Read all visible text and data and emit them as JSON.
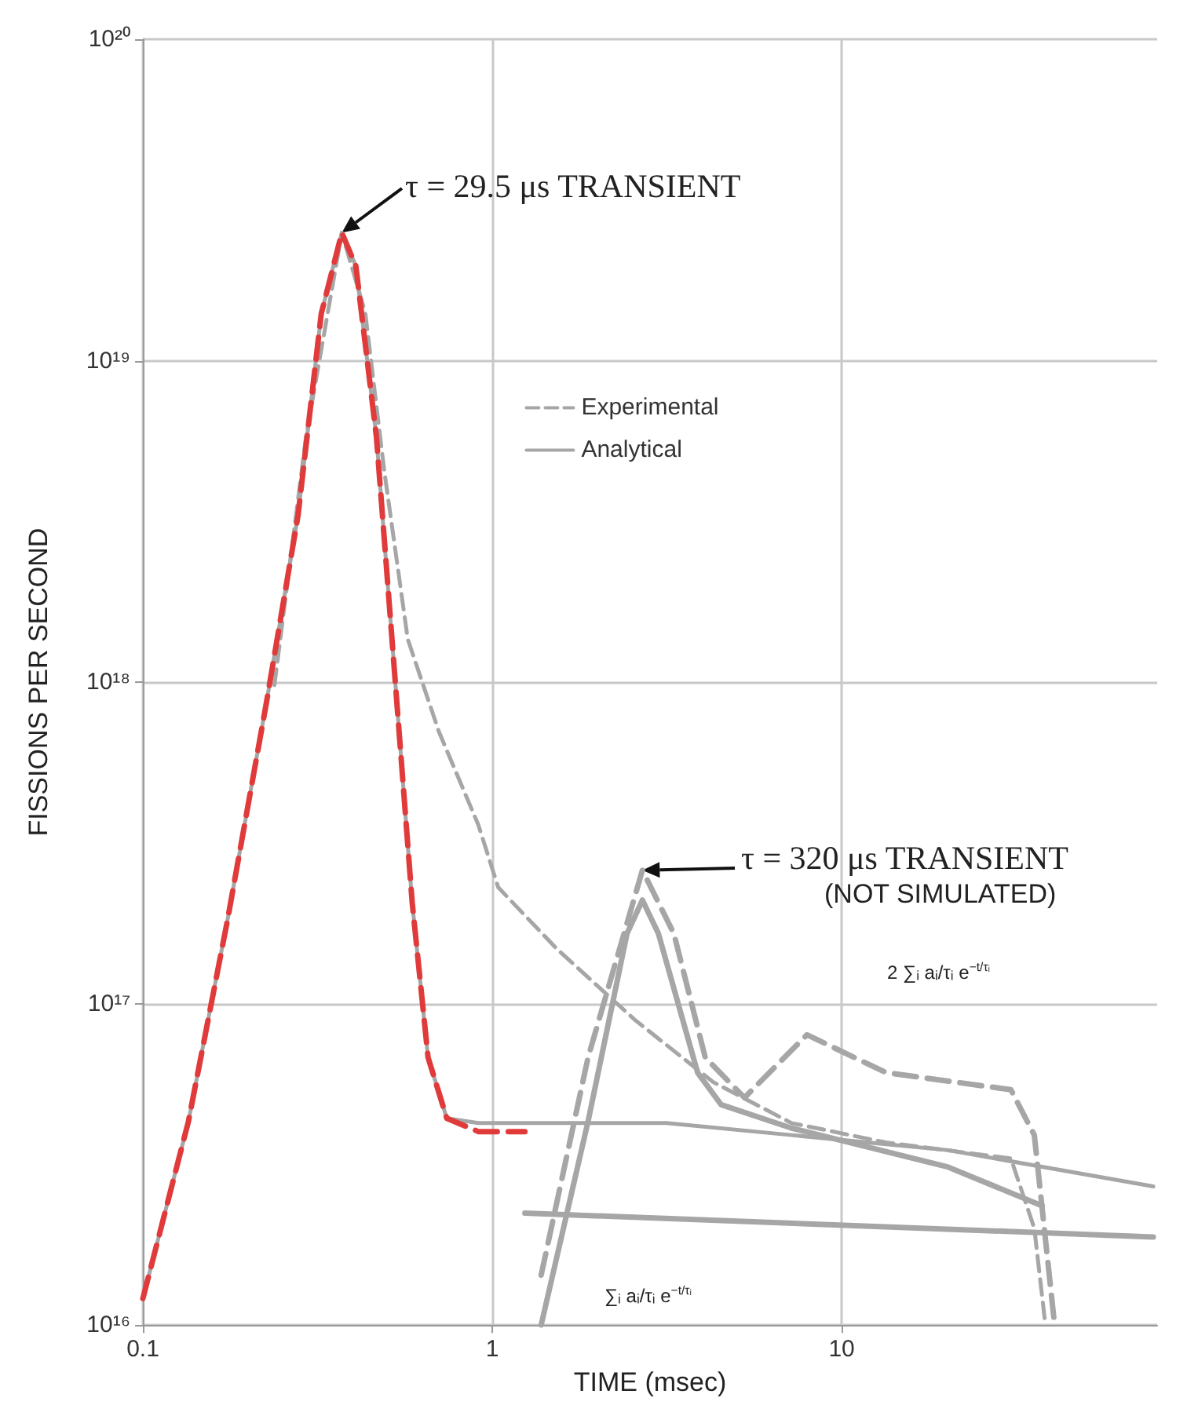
{
  "chart_data": {
    "type": "line",
    "xlabel": "TIME (msec)",
    "ylabel": "FISSIONS PER SECOND",
    "log": "xy",
    "grid": true,
    "marker": "none",
    "legend": "top",
    "xlim": [
      0.1,
      80
    ],
    "ylim": [
      1e+16,
      1e+20
    ],
    "xticks": [
      0.1,
      1,
      10
    ],
    "yticks": [
      {
        "value": 1e+16,
        "label": "10¹⁶"
      },
      {
        "value": 1e+17,
        "label": "10¹⁷"
      },
      {
        "value": 1e+18,
        "label": "10¹⁸"
      },
      {
        "value": 1e+19,
        "label": "10¹⁹"
      },
      {
        "value": 1e+20,
        "label": "10²⁰"
      }
    ],
    "series": [
      {
        "name": "Experimental",
        "color": "#a6a6a6",
        "line_style": "dashed",
        "x": [
          0.238,
          0.293,
          0.371,
          0.433,
          0.49,
          0.573,
          0.704,
          0.912,
          1.04,
          1.53,
          2.56,
          4.29,
          7.19,
          13.4,
          30.5,
          35.6,
          38.3
        ],
        "values": [
          9.8e+17,
          5.8e+18,
          2.5e+19,
          1.41e+19,
          4.6e+18,
          1.36e+18,
          7e+17,
          3.6e+17,
          2.3e+17,
          1.48e+17,
          8.9e+16,
          5.7e+16,
          4.25e+16,
          3.7e+16,
          3.3e+16,
          2e+16,
          1e+16
        ]
      },
      {
        "color": "#a6a6a6",
        "line_style": "dashed",
        "x": [
          1.38,
          1.88,
          2.69,
          3.31,
          4.07,
          5.27,
          7.96,
          13.4,
          30.5,
          35.6,
          40.7
        ],
        "values": [
          1.43e+16,
          6.8e+16,
          2.6e+17,
          1.65e+17,
          6.8e+16,
          5.1e+16,
          8e+16,
          6.1e+16,
          5.4e+16,
          3.9e+16,
          1e+16
        ]
      },
      {
        "name": "Analytical",
        "color": "#a6a6a6",
        "line_style": "solid",
        "x": [
          0.1,
          0.135,
          0.175,
          0.226,
          0.278,
          0.324,
          0.371,
          0.407,
          0.466,
          0.533,
          0.59,
          0.655,
          0.741,
          0.912,
          1.24,
          3.15,
          7.19,
          20.2,
          78
        ],
        "values": [
          1.21e+16,
          4.3e+16,
          1.84e+17,
          8.7e+17,
          3.3e+18,
          1.4e+19,
          2.5e+19,
          1.97e+19,
          5.8e+18,
          8.7e+17,
          2.06e+17,
          6.8e+16,
          4.4e+16,
          4.25e+16,
          4.25e+16,
          4.25e+16,
          3.9e+16,
          3.5e+16,
          2.7e+16
        ]
      },
      {
        "color": "#a6a6a6",
        "line_style": "solid",
        "x": [
          1.38,
          1.88,
          2.43,
          2.69,
          2.99,
          3.87,
          4.52,
          7.19,
          20.2,
          37.5
        ],
        "values": [
          1e+16,
          4.3e+16,
          1.65e+17,
          2.1e+17,
          1.65e+17,
          6.1e+16,
          4.85e+16,
          4.1e+16,
          3.1e+16,
          2.35e+16
        ]
      },
      {
        "color": "#a6a6a6",
        "line_style": "solid",
        "x": [
          1.24,
          78
        ],
        "values": [
          2.23e+16,
          1.88e+16
        ]
      },
      {
        "color": "#e03a3a",
        "line_style": "dashed",
        "x": [
          0.1,
          0.135,
          0.175,
          0.226,
          0.278,
          0.324,
          0.371,
          0.407,
          0.466,
          0.533,
          0.59,
          0.655,
          0.741,
          0.912,
          1.24
        ],
        "values": [
          1.21e+16,
          4.3e+16,
          1.84e+17,
          8.7e+17,
          3.3e+18,
          1.4e+19,
          2.5e+19,
          1.97e+19,
          5.8e+18,
          8.7e+17,
          2.06e+17,
          6.8e+16,
          4.4e+16,
          4e+16,
          4e+16
        ]
      }
    ],
    "annotations": [
      {
        "text": "τ = 29.5 μs TRANSIENT",
        "x": 0.371,
        "y": 2.5e+19
      },
      {
        "text": "τ = 320 μs TRANSIENT",
        "x": 2.69,
        "y": 2.6e+17
      },
      "(NOT SIMULATED)",
      "2 ∑ᵢ aᵢ/τᵢ e$^{−t/τᵢ}$",
      "∑ᵢ aᵢ/τᵢ e$^{−t/τᵢ}$"
    ]
  }
}
